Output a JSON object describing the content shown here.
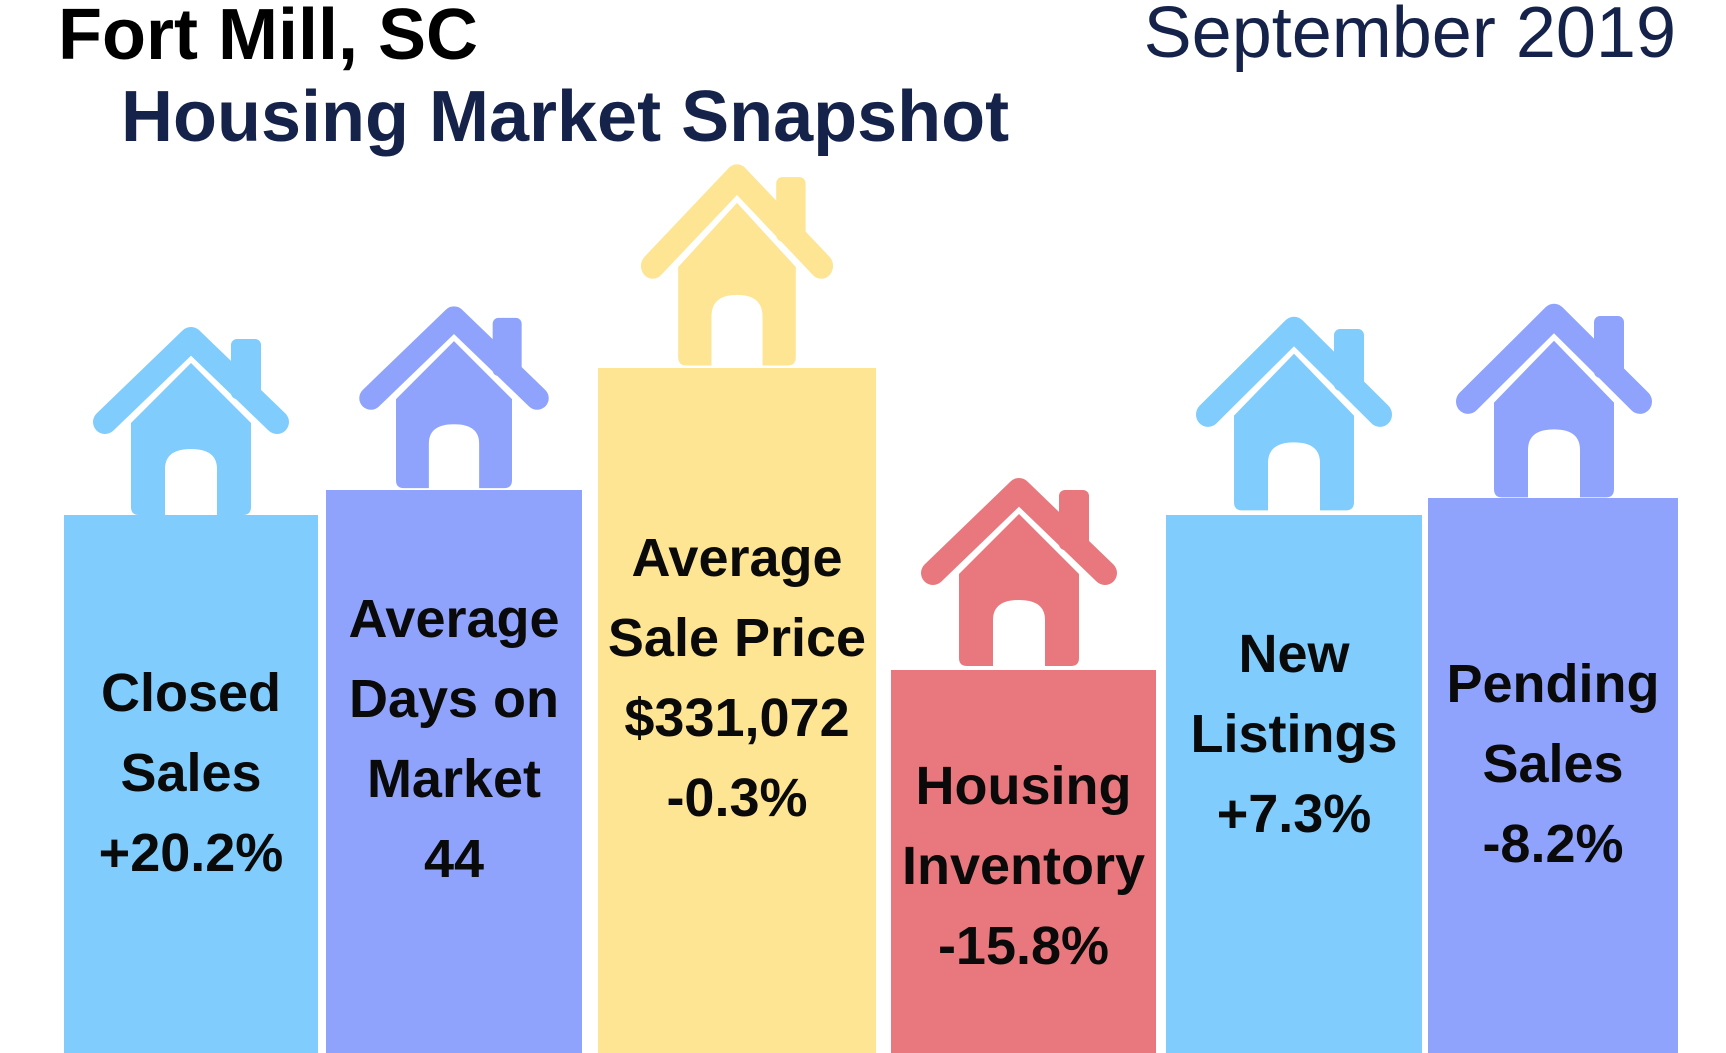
{
  "header": {
    "title": "Fort Mill, SC",
    "subtitle": "Housing Market Snapshot",
    "date": "September 2019"
  },
  "icon": "house-icon",
  "colors": {
    "light_blue": "#7fccfd",
    "periwinkle": "#8fa3fd",
    "yellow": "#fde593",
    "red": "#e8787d",
    "title_text": "#000000",
    "navy_text": "#152249"
  },
  "cards": [
    {
      "id": "closed-sales",
      "color": "#7fccfd",
      "lines": [
        "Closed",
        "Sales",
        "+20.2%"
      ]
    },
    {
      "id": "average-days-on-market",
      "color": "#8fa3fd",
      "lines": [
        "Average",
        "Days on",
        "Market",
        "44"
      ]
    },
    {
      "id": "average-sale-price",
      "color": "#fde593",
      "lines": [
        "Average",
        "Sale Price",
        "$331,072",
        "-0.3%"
      ]
    },
    {
      "id": "housing-inventory",
      "color": "#e8787d",
      "lines": [
        "Housing",
        "Inventory",
        "-15.8%"
      ]
    },
    {
      "id": "new-listings",
      "color": "#7fccfd",
      "lines": [
        "New",
        "Listings",
        "+7.3%"
      ]
    },
    {
      "id": "pending-sales",
      "color": "#8fa3fd",
      "lines": [
        "Pending",
        "Sales",
        "-8.2%"
      ]
    }
  ]
}
